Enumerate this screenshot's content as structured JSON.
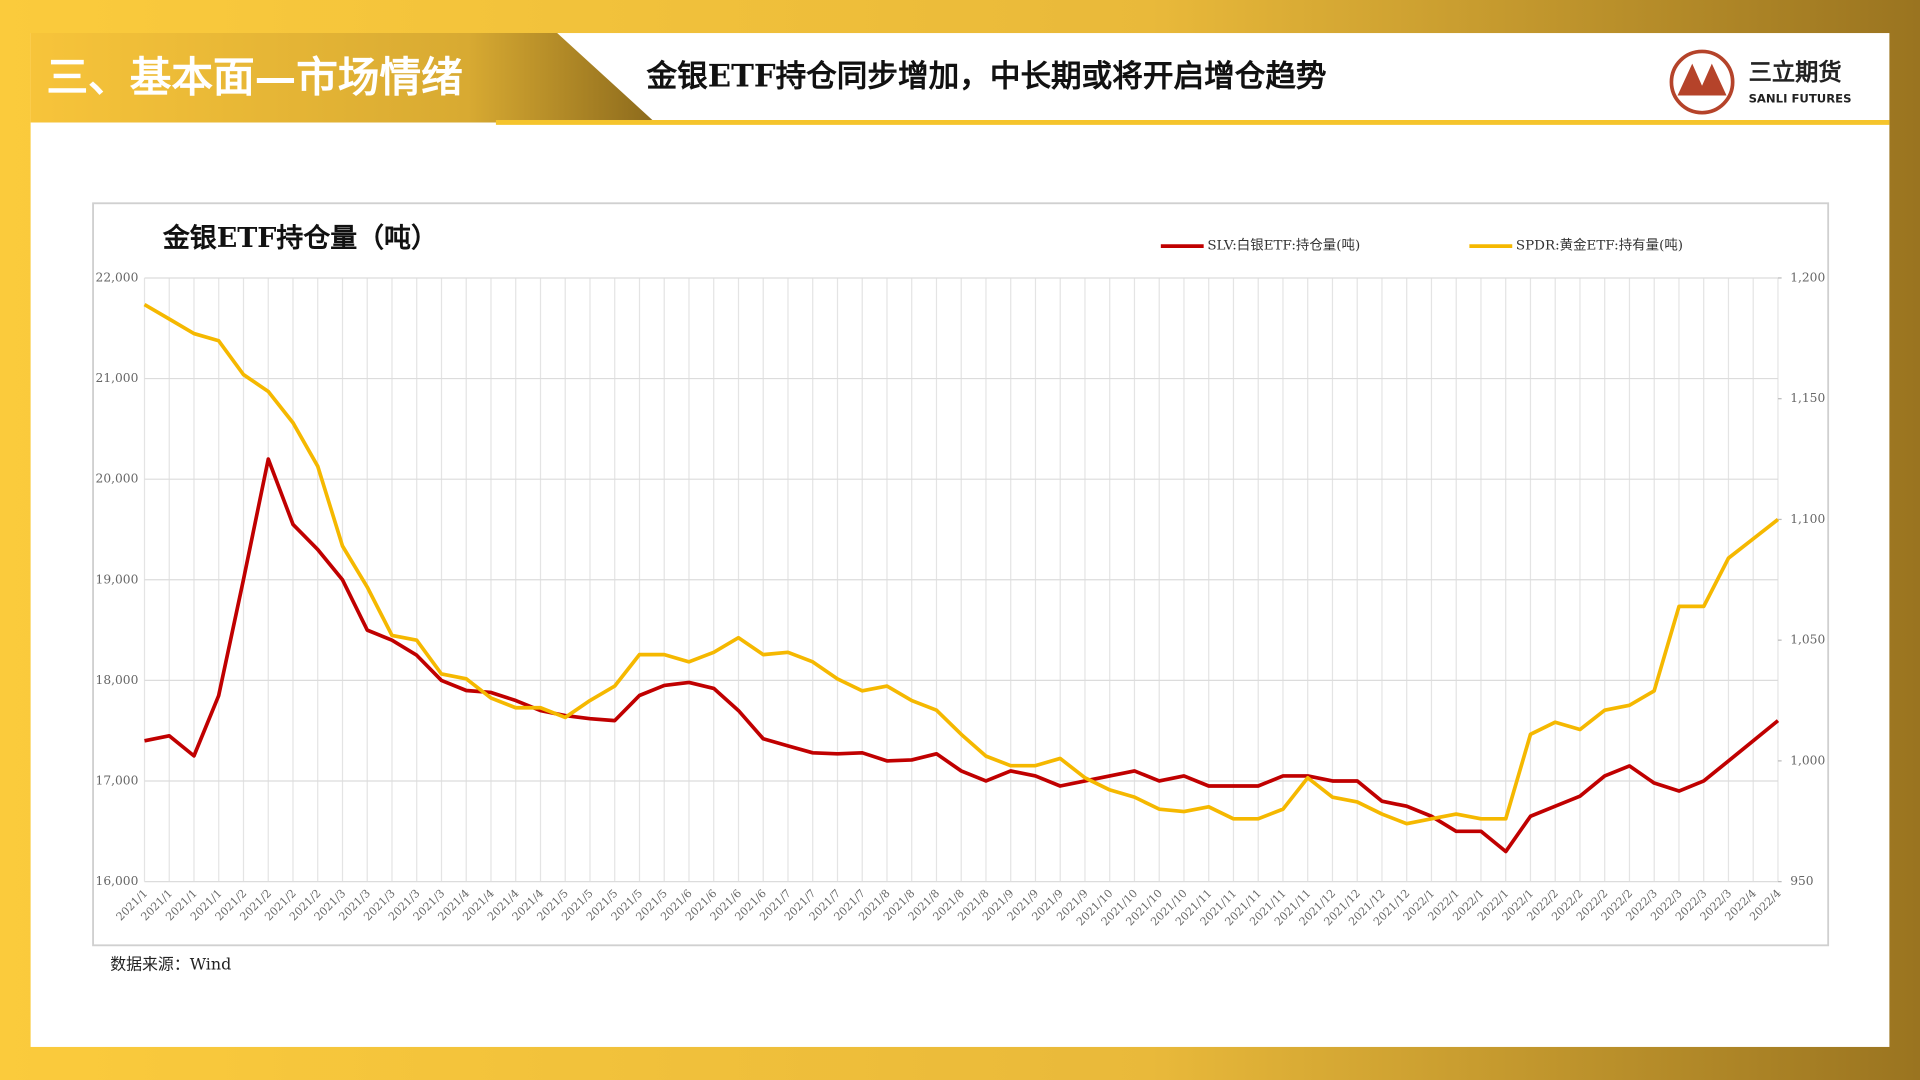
{
  "header": {
    "section": "三、基本面—市场情绪",
    "title": "金银ETF持仓同步增加，中长期或将开启增仓趋势"
  },
  "logo": {
    "name": "三立期货",
    "subtitle": "SANLI FUTURES"
  },
  "chart_data": {
    "type": "line",
    "title": "金银ETF持仓量（吨）",
    "legend": "top",
    "grid": true,
    "categories": [
      "2021/1",
      "2021/1",
      "2021/1",
      "2021/1",
      "2021/2",
      "2021/2",
      "2021/2",
      "2021/2",
      "2021/3",
      "2021/3",
      "2021/3",
      "2021/3",
      "2021/3",
      "2021/4",
      "2021/4",
      "2021/4",
      "2021/4",
      "2021/5",
      "2021/5",
      "2021/5",
      "2021/5",
      "2021/5",
      "2021/6",
      "2021/6",
      "2021/6",
      "2021/6",
      "2021/7",
      "2021/7",
      "2021/7",
      "2021/7",
      "2021/8",
      "2021/8",
      "2021/8",
      "2021/8",
      "2021/8",
      "2021/9",
      "2021/9",
      "2021/9",
      "2021/9",
      "2021/10",
      "2021/10",
      "2021/10",
      "2021/10",
      "2021/11",
      "2021/11",
      "2021/11",
      "2021/11",
      "2021/11",
      "2021/12",
      "2021/12",
      "2021/12",
      "2021/12",
      "2022/1",
      "2022/1",
      "2022/1",
      "2022/1",
      "2022/1",
      "2022/2",
      "2022/2",
      "2022/2",
      "2022/2",
      "2022/3",
      "2022/3",
      "2022/3",
      "2022/3",
      "2022/4",
      "2022/4"
    ],
    "series": [
      {
        "name": "SLV:白银ETF:持仓量(吨)",
        "color": "#c00000",
        "axis": "y",
        "values": [
          17400,
          17450,
          17250,
          17850,
          19000,
          20200,
          19550,
          19300,
          19000,
          18500,
          18400,
          18250,
          18000,
          17900,
          17880,
          17800,
          17700,
          17650,
          17620,
          17600,
          17850,
          17950,
          17980,
          17920,
          17700,
          17420,
          17350,
          17280,
          17270,
          17280,
          17200,
          17210,
          17270,
          17100,
          17000,
          17100,
          17050,
          16950,
          17000,
          17050,
          17100,
          17000,
          17050,
          16950,
          16950,
          16950,
          17050,
          17050,
          17000,
          17000,
          16800,
          16750,
          16650,
          16500,
          16500,
          16300,
          16650,
          16750,
          16850,
          17050,
          17150,
          16980,
          16900,
          17000,
          17200,
          17400,
          17600
        ]
      },
      {
        "name": "SPDR:黄金ETF:持有量(吨)",
        "color": "#f5b800",
        "axis": "y2",
        "values": [
          1189,
          1183,
          1177,
          1174,
          1160,
          1153,
          1140,
          1122,
          1089,
          1072,
          1052,
          1050,
          1036,
          1034,
          1026,
          1022,
          1022,
          1018,
          1025,
          1031,
          1044,
          1044,
          1041,
          1045,
          1051,
          1044,
          1045,
          1041,
          1034,
          1029,
          1031,
          1025,
          1021,
          1011,
          1002,
          998,
          998,
          1001,
          993,
          988,
          985,
          980,
          979,
          981,
          976,
          976,
          980,
          993,
          985,
          983,
          978,
          974,
          976,
          978,
          976,
          976,
          1011,
          1016,
          1013,
          1021,
          1023,
          1029,
          1064,
          1064,
          1084,
          1092,
          1100
        ]
      }
    ],
    "ylim": [
      16000,
      22000
    ],
    "yticks": [
      {
        "value": 16000,
        "label": "16,000"
      },
      {
        "value": 17000,
        "label": "17,000"
      },
      {
        "value": 18000,
        "label": "18,000"
      },
      {
        "value": 19000,
        "label": "19,000"
      },
      {
        "value": 20000,
        "label": "20,000"
      },
      {
        "value": 21000,
        "label": "21,000"
      },
      {
        "value": 22000,
        "label": "22,000"
      }
    ],
    "y2lim": [
      950,
      1200
    ],
    "y2ticks": [
      950,
      {
        "value": 1000,
        "label": "1,000"
      },
      {
        "value": 1050,
        "label": "1,050"
      },
      {
        "value": 1100,
        "label": "1,100"
      },
      {
        "value": 1150,
        "label": "1,150"
      },
      {
        "value": 1200,
        "label": "1,200"
      }
    ]
  },
  "source": "数据来源：Wind"
}
